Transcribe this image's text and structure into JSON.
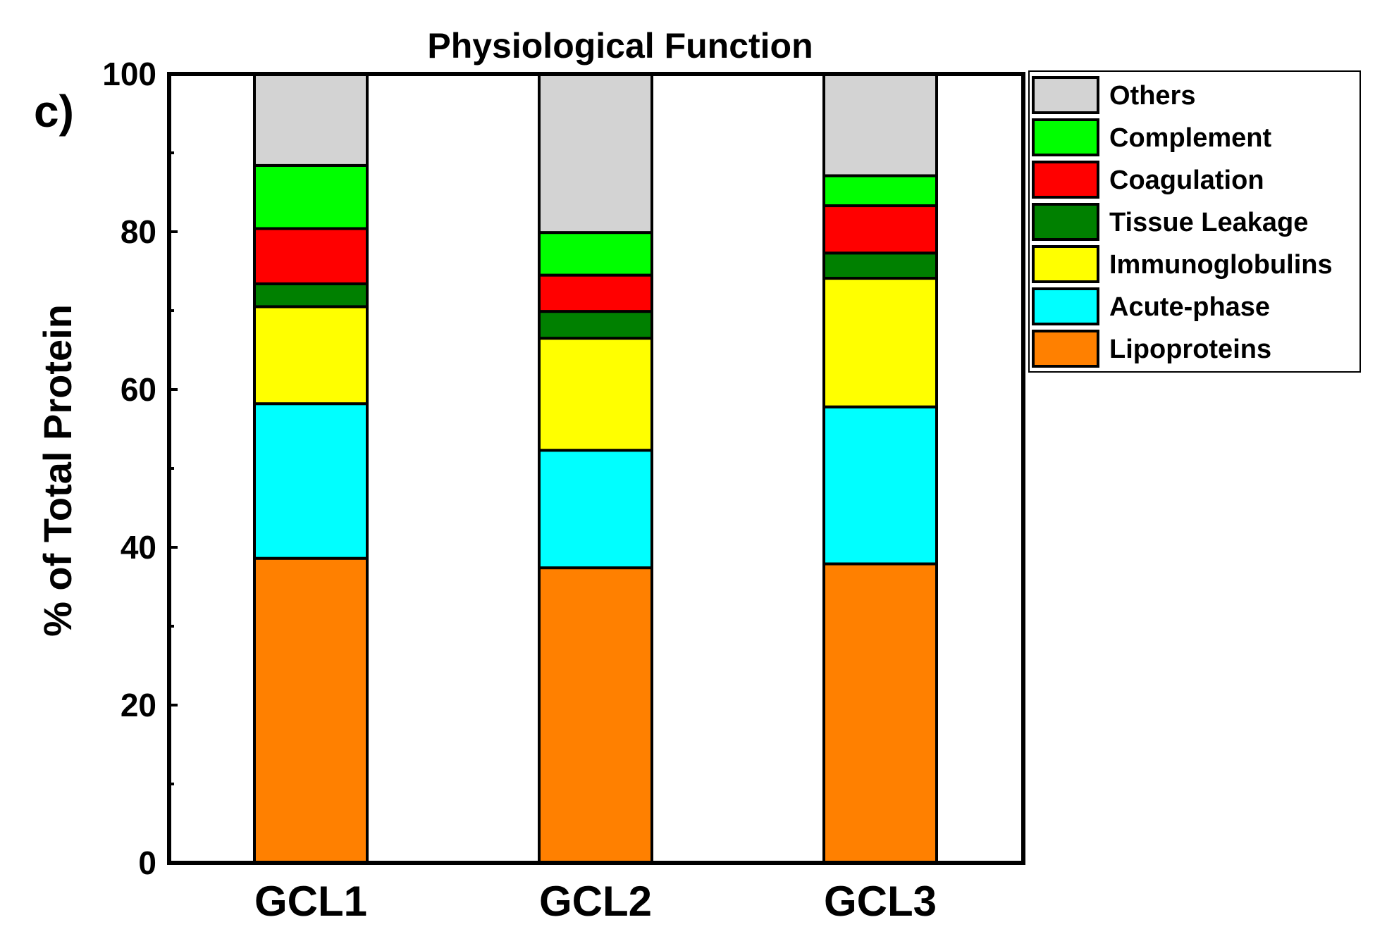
{
  "panel_label": "c)",
  "chart_data": {
    "type": "bar",
    "stacked": true,
    "title": "Physiological Function",
    "xlabel": "",
    "ylabel": "% of Total Protein",
    "ylim": [
      0,
      100
    ],
    "yticks": [
      0,
      20,
      40,
      60,
      80,
      100
    ],
    "grid": false,
    "legend_position": "right-top",
    "categories": [
      "GCL1",
      "GCL2",
      "GCL3"
    ],
    "series": [
      {
        "name": "Lipoproteins",
        "color": "#FF8000",
        "values": [
          38.6,
          37.4,
          37.9
        ]
      },
      {
        "name": "Acute-phase",
        "color": "#00FFFF",
        "values": [
          19.6,
          14.9,
          19.9
        ]
      },
      {
        "name": "Immunoglobulins",
        "color": "#FFFF00",
        "values": [
          12.3,
          14.2,
          16.3
        ]
      },
      {
        "name": "Tissue Leakage",
        "color": "#008000",
        "values": [
          2.9,
          3.4,
          3.2
        ]
      },
      {
        "name": "Coagulation",
        "color": "#FF0000",
        "values": [
          7.0,
          4.6,
          6.0
        ]
      },
      {
        "name": "Complement",
        "color": "#00FF00",
        "values": [
          8.0,
          5.4,
          3.8
        ]
      },
      {
        "name": "Others",
        "color": "#D3D3D3",
        "values": [
          11.6,
          20.1,
          12.9
        ]
      }
    ]
  }
}
